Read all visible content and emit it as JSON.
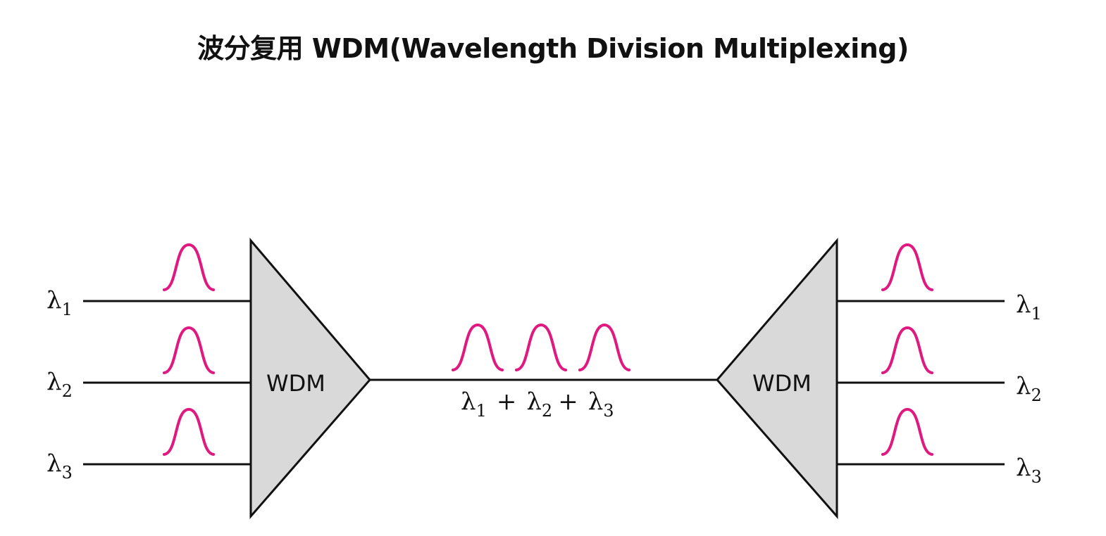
{
  "title": "波分复用 WDM(Wavelength Division Multiplexing)",
  "inputs": [
    {
      "symbol": "λ",
      "sub": "1"
    },
    {
      "symbol": "λ",
      "sub": "2"
    },
    {
      "symbol": "λ",
      "sub": "3"
    }
  ],
  "outputs": [
    {
      "symbol": "λ",
      "sub": "1"
    },
    {
      "symbol": "λ",
      "sub": "2"
    },
    {
      "symbol": "λ",
      "sub": "3"
    }
  ],
  "multiplexer_label": "WDM",
  "demultiplexer_label": "WDM",
  "combined_signal": {
    "symbol": "λ",
    "subs": [
      "1",
      "2",
      "3"
    ],
    "operator": "+"
  },
  "colors": {
    "pulse": "#e0187f",
    "device_fill": "#d9d9d9",
    "line": "#111111"
  }
}
